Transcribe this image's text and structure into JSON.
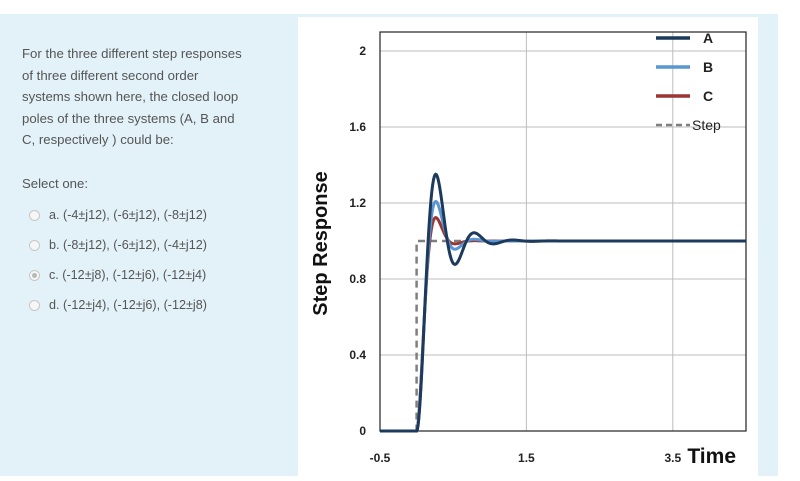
{
  "question": {
    "lines": [
      "For the three different step responses",
      "of three different second order",
      "systems shown here, the closed loop",
      "poles of the three systems (A, B and",
      "C, respectively ) could be:"
    ],
    "select_label": "Select one:",
    "options": [
      {
        "label": "a. (-4±j12), (-6±j12), (-8±j12)",
        "selected": false
      },
      {
        "label": "b. (-8±j12), (-6±j12), (-4±j12)",
        "selected": false
      },
      {
        "label": "c. (-12±j8), (-12±j6), (-12±j4)",
        "selected": true
      },
      {
        "label": "d. (-12±j4), (-12±j6), (-12±j8)",
        "selected": false
      }
    ]
  },
  "chart_data": {
    "type": "line",
    "xlabel": "Time",
    "ylabel": "Step Response",
    "xlim": [
      -0.5,
      4.5
    ],
    "ylim": [
      0,
      2.1
    ],
    "x_ticks": [
      "-0.5",
      "1.5",
      "3.5"
    ],
    "x_tick_values": [
      -0.5,
      1.5,
      3.5
    ],
    "y_ticks": [
      "0",
      "0.4",
      "0.8",
      "1.2",
      "1.6",
      "2"
    ],
    "y_tick_values": [
      0,
      0.4,
      0.8,
      1.2,
      1.6,
      2
    ],
    "grid": true,
    "legend_position": "top-right",
    "series": [
      {
        "name": "A",
        "color": "#1b3a5c",
        "style": "solid",
        "sigma": 4,
        "wd": 12,
        "t0": 0
      },
      {
        "name": "B",
        "color": "#5b95d3",
        "style": "solid",
        "sigma": 6,
        "wd": 12,
        "t0": 0
      },
      {
        "name": "C",
        "color": "#9b3632",
        "style": "solid",
        "sigma": 8,
        "wd": 12,
        "t0": 0
      },
      {
        "name": "Step",
        "color": "#7f7f7f",
        "style": "dashed",
        "t0": 0
      }
    ]
  }
}
